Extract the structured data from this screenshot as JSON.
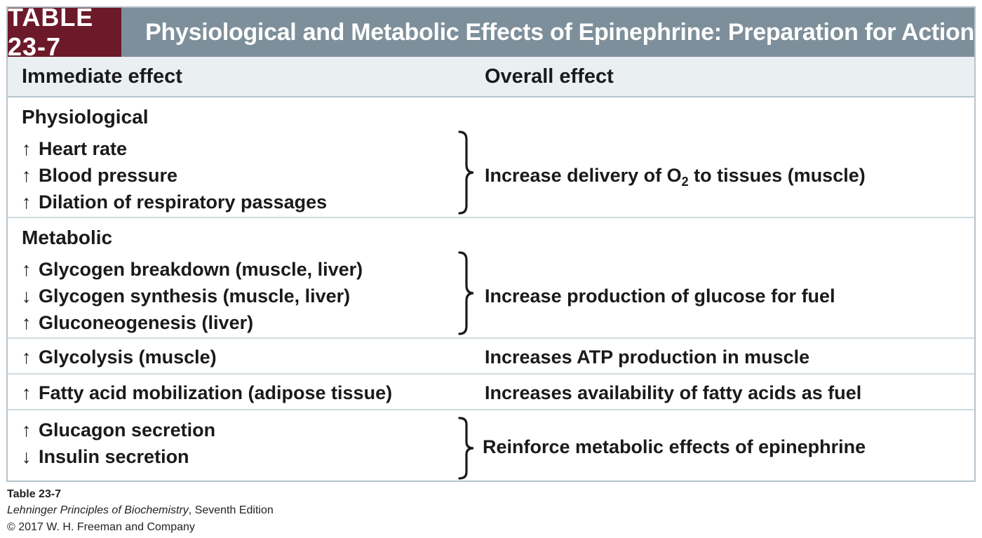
{
  "table": {
    "number": "TABLE 23-7",
    "title": "Physiological and Metabolic Effects of Epinephrine: Preparation for Action",
    "headers": {
      "immediate": "Immediate effect",
      "overall": "Overall effect"
    },
    "sections": {
      "physiological": {
        "heading": "Physiological",
        "effects": [
          {
            "arrow": "↑",
            "text": "Heart rate"
          },
          {
            "arrow": "↑",
            "text": "Blood pressure"
          },
          {
            "arrow": "↑",
            "text": "Dilation of respiratory passages"
          }
        ],
        "overall_pre": "Increase delivery of O",
        "overall_sub": "2",
        "overall_post": " to tissues (muscle)"
      },
      "metabolic": {
        "heading": "Metabolic",
        "effects": [
          {
            "arrow": "↑",
            "text": "Glycogen breakdown (muscle, liver)"
          },
          {
            "arrow": "↓",
            "text": "Glycogen synthesis (muscle, liver)"
          },
          {
            "arrow": "↑",
            "text": "Gluconeogenesis (liver)"
          }
        ],
        "overall": "Increase production of glucose for fuel"
      },
      "glycolysis": {
        "arrow": "↑",
        "text": "Glycolysis (muscle)",
        "overall": "Increases ATP production in muscle"
      },
      "fatty": {
        "arrow": "↑",
        "text": "Fatty acid mobilization (adipose tissue)",
        "overall": "Increases availability of fatty acids as fuel"
      },
      "hormones": {
        "effects": [
          {
            "arrow": "↑",
            "text": "Glucagon secretion"
          },
          {
            "arrow": "↓",
            "text": "Insulin secretion"
          }
        ],
        "overall": "Reinforce metabolic effects of epinephrine"
      }
    }
  },
  "caption": {
    "label": "Table 23-7",
    "book": "Lehninger Principles of Biochemistry",
    "edition": ", Seventh Edition",
    "copyright": "© 2017 W. H. Freeman and Company"
  },
  "colors": {
    "title_bar": "#7d8f9a",
    "table_number_bg": "#6c1a29",
    "header_bg": "#eaeff2",
    "border": "#b7c4cc"
  }
}
